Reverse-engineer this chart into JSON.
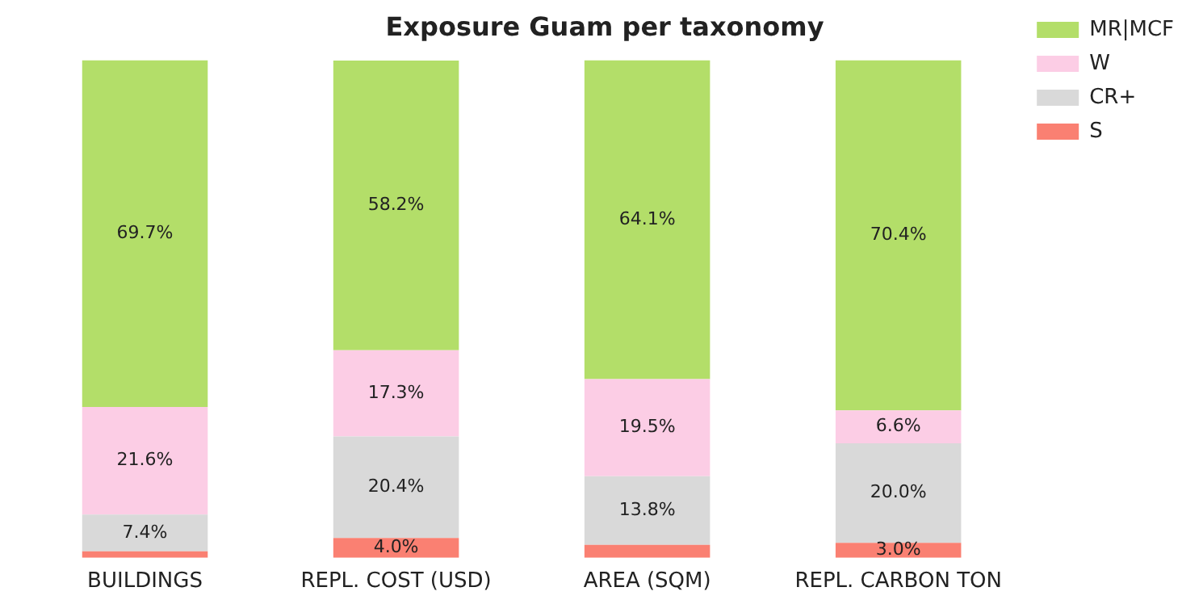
{
  "chart_data": {
    "type": "bar",
    "title": "Exposure Guam per taxonomy",
    "categories": [
      "BUILDINGS",
      "REPL. COST (USD)",
      "AREA (SQM)",
      "REPL. CARBON TON"
    ],
    "stacked": true,
    "ylim": [
      0,
      100
    ],
    "tick_labels": "x",
    "legend": "top right",
    "grid": false,
    "series": [
      {
        "name": "S",
        "color": "#fa8072",
        "values": [
          1.3,
          4.0,
          2.6,
          3.0
        ],
        "value_labels": [
          null,
          "4.0%",
          null,
          "3.0%"
        ]
      },
      {
        "name": "CR+",
        "color": "#d9d9d9",
        "values": [
          7.4,
          20.4,
          13.8,
          20.0
        ],
        "value_labels": [
          "7.4%",
          "20.4%",
          "13.8%",
          "20.0%"
        ]
      },
      {
        "name": "W",
        "color": "#fccde5",
        "values": [
          21.6,
          17.3,
          19.5,
          6.6
        ],
        "value_labels": [
          "21.6%",
          "17.3%",
          "19.5%",
          "6.6%"
        ]
      },
      {
        "name": "MR|MCF",
        "color": "#b3de69",
        "values": [
          69.7,
          58.2,
          64.1,
          70.4
        ],
        "value_labels": [
          "69.7%",
          "58.2%",
          "64.1%",
          "70.4%"
        ]
      }
    ]
  }
}
